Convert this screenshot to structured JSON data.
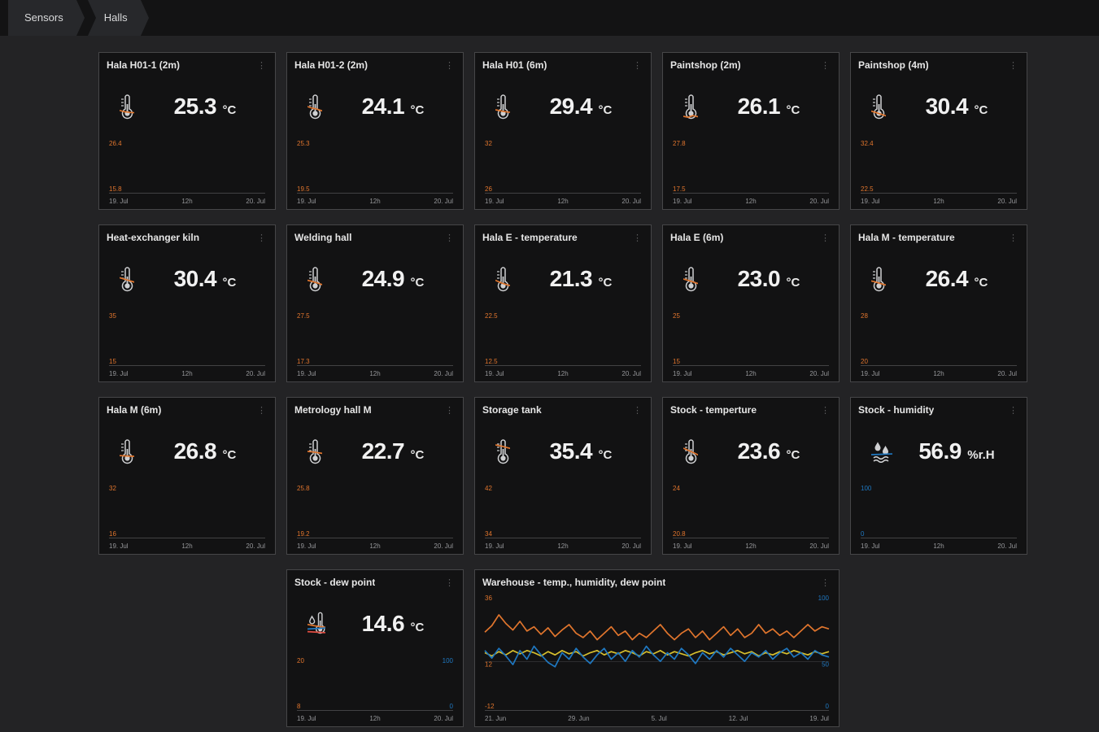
{
  "breadcrumb": [
    "Sensors",
    "Halls"
  ],
  "icons": {
    "panel_menu": "⋮"
  },
  "colors": {
    "orange": "#e0752d",
    "blue": "#1f78c1",
    "yellow": "#d6bf2e",
    "red": "#e24d42",
    "panel_bg": "#121213",
    "page_bg": "#232325"
  },
  "panels": [
    {
      "title": "Hala H01-1 (2m)",
      "icon": "thermometer",
      "value": "25.3",
      "unit": "°C",
      "ymax": "26.4",
      "ymin": "15.8",
      "x_ticks": [
        "19. Jul",
        "12h",
        "20. Jul"
      ],
      "series": [
        {
          "name": "temperature",
          "color": "#e0752d",
          "points": [
            0.48,
            0.44,
            0.42,
            0.41,
            0.4,
            0.41,
            0.42,
            0.43,
            0.45,
            0.48,
            0.53,
            0.58,
            0.62,
            0.67,
            0.7,
            0.66,
            0.72
          ]
        }
      ]
    },
    {
      "title": "Hala H01-2 (2m)",
      "icon": "thermometer",
      "value": "24.1",
      "unit": "°C",
      "ymax": "25.3",
      "ymin": "19.5",
      "x_ticks": [
        "19. Jul",
        "12h",
        "20. Jul"
      ],
      "series": [
        {
          "name": "temperature",
          "color": "#e0752d",
          "points": [
            0.6,
            0.55,
            0.52,
            0.47,
            0.4,
            0.33,
            0.3,
            0.27,
            0.32,
            0.29,
            0.36,
            0.33,
            0.45,
            0.55,
            0.63,
            0.72,
            0.66,
            0.74
          ]
        }
      ]
    },
    {
      "title": "Hala H01 (6m)",
      "icon": "thermometer",
      "value": "29.4",
      "unit": "°C",
      "ymax": "32",
      "ymin": "26",
      "x_ticks": [
        "19. Jul",
        "12h",
        "20. Jul"
      ],
      "series": [
        {
          "name": "temperature",
          "color": "#e0752d",
          "points": [
            0.5,
            0.46,
            0.43,
            0.42,
            0.41,
            0.42,
            0.44,
            0.47,
            0.51,
            0.56,
            0.61,
            0.66,
            0.7,
            0.73
          ]
        }
      ]
    },
    {
      "title": "Paintshop (2m)",
      "icon": "thermometer",
      "value": "26.1",
      "unit": "°C",
      "ymax": "27.8",
      "ymin": "17.5",
      "x_ticks": [
        "19. Jul",
        "12h",
        "20. Jul"
      ],
      "series": [
        {
          "name": "temperature",
          "color": "#e0752d",
          "points": [
            0.3,
            0.27,
            0.32,
            0.29,
            0.34,
            0.38,
            0.35,
            0.42,
            0.48,
            0.54,
            0.59,
            0.56,
            0.65,
            0.71,
            0.79,
            0.76,
            0.84,
            0.8
          ]
        }
      ]
    },
    {
      "title": "Paintshop (4m)",
      "icon": "thermometer",
      "value": "30.4",
      "unit": "°C",
      "ymax": "32.4",
      "ymin": "22.5",
      "x_ticks": [
        "19. Jul",
        "12h",
        "20. Jul"
      ],
      "series": [
        {
          "name": "temperature",
          "color": "#e0752d",
          "points": [
            0.46,
            0.41,
            0.36,
            0.31,
            0.28,
            0.33,
            0.28,
            0.35,
            0.43,
            0.4,
            0.5,
            0.56,
            0.52,
            0.63,
            0.84,
            0.74,
            0.78
          ]
        }
      ]
    },
    {
      "title": "Heat-exchanger kiln",
      "icon": "thermometer",
      "value": "30.4",
      "unit": "°C",
      "ymax": "35",
      "ymin": "15",
      "x_ticks": [
        "19. Jul",
        "12h",
        "20. Jul"
      ],
      "series": [
        {
          "name": "temperature",
          "color": "#e0752d",
          "points": [
            0.64,
            0.59,
            0.54,
            0.49,
            0.45,
            0.5,
            0.55,
            0.51,
            0.59,
            0.62,
            0.57,
            0.61,
            0.58,
            0.64,
            0.67,
            0.62
          ]
        }
      ]
    },
    {
      "title": "Welding hall",
      "icon": "thermometer",
      "value": "24.9",
      "unit": "°C",
      "ymax": "27.5",
      "ymin": "17.3",
      "x_ticks": [
        "19. Jul",
        "12h",
        "20. Jul"
      ],
      "series": [
        {
          "name": "temperature",
          "color": "#e0752d",
          "points": [
            0.56,
            0.51,
            0.45,
            0.38,
            0.32,
            0.29,
            0.33,
            0.38,
            0.45,
            0.52,
            0.58,
            0.64,
            0.59,
            0.54
          ]
        }
      ]
    },
    {
      "title": "Hala E - temperature",
      "icon": "thermometer",
      "value": "21.3",
      "unit": "°C",
      "ymax": "22.5",
      "ymin": "12.5",
      "x_ticks": [
        "19. Jul",
        "12h",
        "20. Jul"
      ],
      "series": [
        {
          "name": "temperature",
          "color": "#e0752d",
          "points": [
            0.56,
            0.48,
            0.42,
            0.38,
            0.35,
            0.36,
            0.33,
            0.37,
            0.41,
            0.44,
            0.49,
            0.58,
            0.68,
            0.76,
            0.79
          ]
        }
      ]
    },
    {
      "title": "Hala E (6m)",
      "icon": "thermometer",
      "value": "23.0",
      "unit": "°C",
      "ymax": "25",
      "ymin": "15",
      "x_ticks": [
        "19. Jul",
        "12h",
        "20. Jul"
      ],
      "series": [
        {
          "name": "temperature",
          "color": "#e0752d",
          "points": [
            0.6,
            0.54,
            0.47,
            0.41,
            0.37,
            0.34,
            0.35,
            0.39,
            0.47,
            0.54,
            0.61,
            0.69,
            0.74
          ]
        }
      ]
    },
    {
      "title": "Hala M - temperature",
      "icon": "thermometer",
      "value": "26.4",
      "unit": "°C",
      "ymax": "28",
      "ymin": "20",
      "x_ticks": [
        "19. Jul",
        "12h",
        "20. Jul"
      ],
      "series": [
        {
          "name": "temperature",
          "color": "#e0752d",
          "points": [
            0.54,
            0.49,
            0.43,
            0.39,
            0.36,
            0.34,
            0.37,
            0.41,
            0.47,
            0.54,
            0.64,
            0.77,
            0.7,
            0.75
          ]
        }
      ]
    },
    {
      "title": "Hala M (6m)",
      "icon": "thermometer",
      "value": "26.8",
      "unit": "°C",
      "ymax": "32",
      "ymin": "16",
      "x_ticks": [
        "19. Jul",
        "12h",
        "20. Jul"
      ],
      "series": [
        {
          "name": "temperature",
          "color": "#e0752d",
          "points": [
            0.47,
            0.46,
            0.45,
            0.44,
            0.45,
            0.46,
            0.47,
            0.49,
            0.51,
            0.54,
            0.57,
            0.55,
            0.57
          ]
        }
      ]
    },
    {
      "title": "Metrology hall M",
      "icon": "thermometer",
      "value": "22.7",
      "unit": "°C",
      "ymax": "25.8",
      "ymin": "19.2",
      "x_ticks": [
        "19. Jul",
        "12h",
        "20. Jul"
      ],
      "series": [
        {
          "name": "temperature",
          "color": "#e0752d",
          "points": [
            0.6,
            0.58,
            0.55,
            0.52,
            0.5,
            0.45,
            0.4,
            0.36,
            0.38,
            0.34,
            0.39,
            0.41,
            0.43,
            0.44
          ]
        }
      ]
    },
    {
      "title": "Storage tank",
      "icon": "thermometer",
      "value": "35.4",
      "unit": "°C",
      "ymax": "42",
      "ymin": "34",
      "x_ticks": [
        "19. Jul",
        "12h",
        "20. Jul"
      ],
      "series": [
        {
          "name": "temperature",
          "color": "#e0752d",
          "points": [
            0.8,
            0.76,
            0.71,
            0.66,
            0.61,
            0.56,
            0.51,
            0.46,
            0.43,
            0.39,
            0.36,
            0.33,
            0.31,
            0.28
          ]
        }
      ]
    },
    {
      "title": "Stock - temperture",
      "icon": "thermometer",
      "value": "23.6",
      "unit": "°C",
      "ymax": "24",
      "ymin": "20.8",
      "x_ticks": [
        "19. Jul",
        "12h",
        "20. Jul"
      ],
      "series": [
        {
          "name": "temperature",
          "color": "#e0752d",
          "points": [
            0.7,
            0.62,
            0.54,
            0.45,
            0.38,
            0.3,
            0.25,
            0.2,
            0.24,
            0.31,
            0.44,
            0.57,
            0.69,
            0.79,
            0.74
          ]
        }
      ]
    },
    {
      "title": "Stock - humidity",
      "icon": "humidity",
      "value": "56.9",
      "unit": "%r.H",
      "ymax": "100",
      "ymin": "0",
      "x_ticks": [
        "19. Jul",
        "12h",
        "20. Jul"
      ],
      "series": [
        {
          "name": "humidity",
          "color": "#1f78c1",
          "points": [
            0.55,
            0.56,
            0.57,
            0.58,
            0.58,
            0.59,
            0.58,
            0.57,
            0.56,
            0.54
          ]
        }
      ]
    },
    {
      "title": "Stock - dew point",
      "icon": "dew-point",
      "value": "14.6",
      "unit": "°C",
      "ymax": "20",
      "ymin": "8",
      "right_ymax": "100",
      "right_ymin": "0",
      "x_ticks": [
        "19. Jul",
        "12h",
        "20. Jul"
      ],
      "series": [
        {
          "name": "dew-point",
          "color": "#e0752d",
          "points": [
            0.58,
            0.55,
            0.52,
            0.5,
            0.48,
            0.46,
            0.45,
            0.45,
            0.46,
            0.47,
            0.49,
            0.52,
            0.55,
            0.58,
            0.61,
            0.63
          ]
        },
        {
          "name": "series-red",
          "color": "#e24d42",
          "points": [
            0.36,
            0.35,
            0.34,
            0.33,
            0.33,
            0.32,
            0.32,
            0.33,
            0.33,
            0.34,
            0.35,
            0.35,
            0.36,
            0.37,
            0.37,
            0.38
          ]
        },
        {
          "name": "humidity",
          "color": "#1f78c1",
          "points": [
            0.44,
            0.45,
            0.46,
            0.47,
            0.48,
            0.49,
            0.5,
            0.51,
            0.52,
            0.52,
            0.53,
            0.54,
            0.55,
            0.55,
            0.56,
            0.57
          ]
        }
      ]
    },
    {
      "title": "Warehouse - temp., humidity, dew point",
      "ymax": "36",
      "ymid": "12",
      "ymin": "-12",
      "right_ymax": "100",
      "right_ymid": "50",
      "right_ymin": "0",
      "x_ticks": [
        "21. Jun",
        "29. Jun",
        "5. Jul",
        "12. Jul",
        "19. Jul"
      ],
      "series": [
        {
          "name": "temperature",
          "color": "#e0752d",
          "points": [
            0.72,
            0.78,
            0.88,
            0.8,
            0.74,
            0.82,
            0.73,
            0.77,
            0.7,
            0.76,
            0.68,
            0.74,
            0.79,
            0.71,
            0.67,
            0.73,
            0.65,
            0.71,
            0.77,
            0.69,
            0.73,
            0.65,
            0.71,
            0.67,
            0.73,
            0.79,
            0.71,
            0.65,
            0.71,
            0.75,
            0.67,
            0.73,
            0.65,
            0.71,
            0.77,
            0.69,
            0.75,
            0.67,
            0.71,
            0.79,
            0.71,
            0.75,
            0.69,
            0.73,
            0.67,
            0.73,
            0.79,
            0.73,
            0.77,
            0.75
          ]
        },
        {
          "name": "dew-point",
          "color": "#d6bf2e",
          "points": [
            0.53,
            0.5,
            0.54,
            0.51,
            0.55,
            0.52,
            0.55,
            0.53,
            0.5,
            0.54,
            0.51,
            0.55,
            0.52,
            0.54,
            0.5,
            0.53,
            0.55,
            0.51,
            0.54,
            0.52,
            0.55,
            0.53,
            0.5,
            0.54,
            0.52,
            0.55,
            0.51,
            0.54,
            0.52,
            0.5,
            0.53,
            0.55,
            0.52,
            0.54,
            0.51,
            0.53,
            0.55,
            0.52,
            0.54,
            0.5,
            0.53,
            0.51,
            0.54,
            0.52,
            0.55,
            0.53,
            0.51,
            0.54,
            0.52,
            0.54
          ]
        },
        {
          "name": "humidity",
          "color": "#1f78c1",
          "points": [
            0.55,
            0.48,
            0.57,
            0.5,
            0.42,
            0.55,
            0.47,
            0.59,
            0.51,
            0.44,
            0.4,
            0.53,
            0.47,
            0.57,
            0.49,
            0.43,
            0.51,
            0.57,
            0.47,
            0.53,
            0.45,
            0.55,
            0.49,
            0.59,
            0.51,
            0.45,
            0.53,
            0.47,
            0.57,
            0.51,
            0.43,
            0.53,
            0.47,
            0.55,
            0.49,
            0.57,
            0.51,
            0.45,
            0.53,
            0.49,
            0.55,
            0.47,
            0.53,
            0.57,
            0.49,
            0.53,
            0.47,
            0.55,
            0.51,
            0.49
          ]
        }
      ]
    }
  ]
}
